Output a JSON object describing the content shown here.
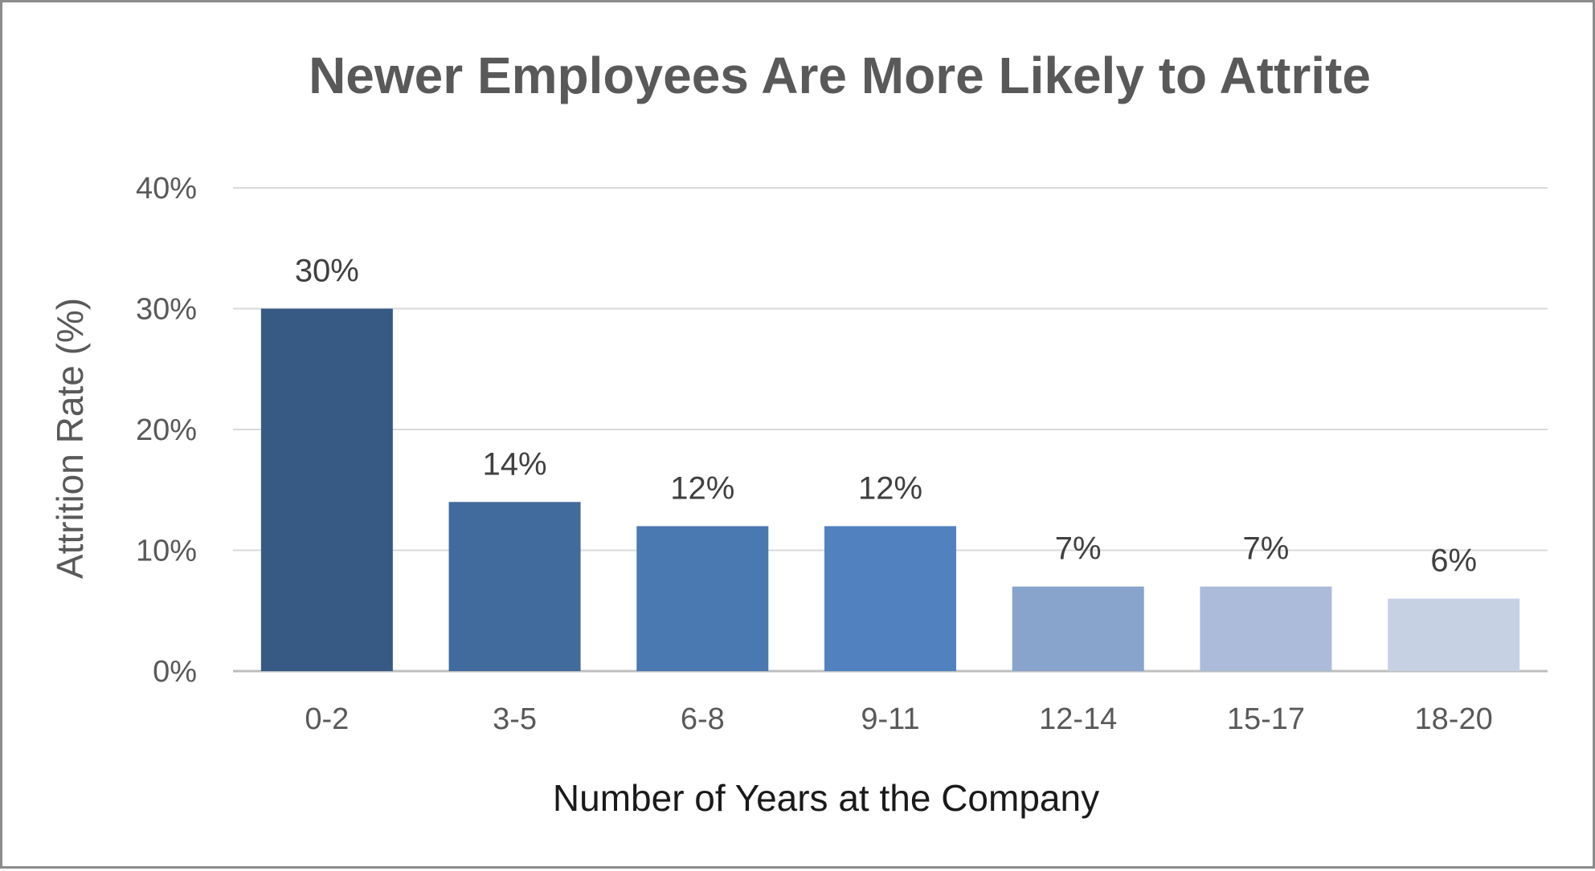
{
  "chart_data": {
    "type": "bar",
    "title": "Newer Employees Are More Likely to Attrite",
    "xlabel": "Number of Years at the Company",
    "ylabel": "Attrition Rate (%)",
    "categories": [
      "0-2",
      "3-5",
      "6-8",
      "9-11",
      "12-14",
      "15-17",
      "18-20"
    ],
    "values": [
      30,
      14,
      12,
      12,
      7,
      7,
      6
    ],
    "value_labels": [
      "30%",
      "14%",
      "12%",
      "12%",
      "7%",
      "7%",
      "6%"
    ],
    "bar_colors": [
      "#365a84",
      "#416b9c",
      "#4a78b0",
      "#5182bf",
      "#88a3cc",
      "#abbbd9",
      "#c6d1e4"
    ],
    "ylim": [
      0,
      40
    ],
    "yticks": [
      0,
      10,
      20,
      30,
      40
    ],
    "ytick_labels": [
      "0%",
      "10%",
      "20%",
      "30%",
      "40%"
    ],
    "grid": true,
    "legend": "none"
  }
}
